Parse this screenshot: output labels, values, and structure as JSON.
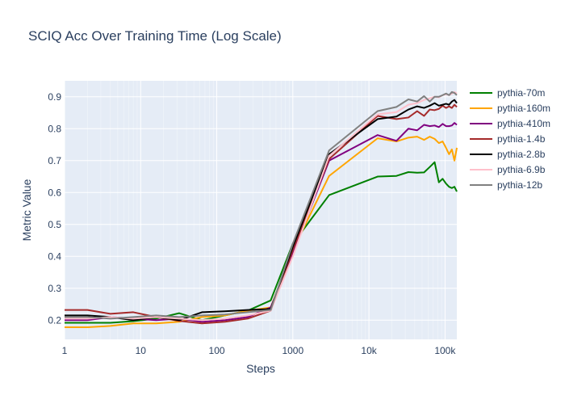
{
  "chart_data": {
    "type": "line",
    "title": "SCIQ Acc Over Training Time (Log Scale)",
    "xlabel": "Steps",
    "ylabel": "Metric Value",
    "x_scale": "log",
    "xlim": [
      1,
      143000
    ],
    "ylim": [
      0.14,
      0.95
    ],
    "grid": true,
    "legend_position": "right",
    "x_ticks": [
      {
        "value": 1,
        "label": "1"
      },
      {
        "value": 10,
        "label": "10"
      },
      {
        "value": 100,
        "label": "100"
      },
      {
        "value": 1000,
        "label": "1000"
      },
      {
        "value": 10000,
        "label": "10k"
      },
      {
        "value": 100000,
        "label": "100k"
      }
    ],
    "y_ticks": [
      {
        "value": 0.2,
        "label": "0.2"
      },
      {
        "value": 0.3,
        "label": "0.3"
      },
      {
        "value": 0.4,
        "label": "0.4"
      },
      {
        "value": 0.5,
        "label": "0.5"
      },
      {
        "value": 0.6,
        "label": "0.6"
      },
      {
        "value": 0.7,
        "label": "0.7"
      },
      {
        "value": 0.8,
        "label": "0.8"
      },
      {
        "value": 0.9,
        "label": "0.9"
      }
    ],
    "x": [
      1,
      2,
      4,
      8,
      16,
      32,
      64,
      128,
      256,
      512,
      1000,
      3000,
      13000,
      23000,
      33000,
      43000,
      53000,
      63000,
      73000,
      83000,
      93000,
      103000,
      113000,
      123000,
      133000,
      143000
    ],
    "series": [
      {
        "name": "pythia-70m",
        "color": "#008000",
        "values": [
          0.192,
          0.192,
          0.192,
          0.197,
          0.205,
          0.222,
          0.2,
          0.215,
          0.23,
          0.262,
          0.44,
          0.592,
          0.65,
          0.652,
          0.664,
          0.662,
          0.663,
          0.68,
          0.695,
          0.632,
          0.643,
          0.628,
          0.618,
          0.614,
          0.618,
          0.603
        ]
      },
      {
        "name": "pythia-160m",
        "color": "#FFA500",
        "values": [
          0.178,
          0.178,
          0.182,
          0.19,
          0.19,
          0.195,
          0.21,
          0.215,
          0.23,
          0.24,
          0.42,
          0.652,
          0.77,
          0.76,
          0.772,
          0.775,
          0.765,
          0.775,
          0.768,
          0.755,
          0.76,
          0.74,
          0.72,
          0.735,
          0.7,
          0.74
        ]
      },
      {
        "name": "pythia-410m",
        "color": "#800080",
        "values": [
          0.2,
          0.2,
          0.21,
          0.205,
          0.2,
          0.205,
          0.195,
          0.2,
          0.21,
          0.24,
          0.41,
          0.7,
          0.78,
          0.762,
          0.8,
          0.795,
          0.812,
          0.808,
          0.81,
          0.805,
          0.815,
          0.808,
          0.808,
          0.81,
          0.818,
          0.812
        ]
      },
      {
        "name": "pythia-1.4b",
        "color": "#A52A2A",
        "values": [
          0.232,
          0.232,
          0.22,
          0.225,
          0.21,
          0.198,
          0.19,
          0.195,
          0.205,
          0.23,
          0.42,
          0.705,
          0.84,
          0.83,
          0.835,
          0.855,
          0.84,
          0.86,
          0.858,
          0.862,
          0.872,
          0.865,
          0.87,
          0.865,
          0.875,
          0.868
        ]
      },
      {
        "name": "pythia-2.8b",
        "color": "#000000",
        "values": [
          0.215,
          0.215,
          0.21,
          0.2,
          0.21,
          0.2,
          0.225,
          0.228,
          0.232,
          0.235,
          0.43,
          0.72,
          0.83,
          0.838,
          0.86,
          0.87,
          0.865,
          0.872,
          0.88,
          0.872,
          0.875,
          0.878,
          0.875,
          0.885,
          0.89,
          0.88
        ]
      },
      {
        "name": "pythia-6.9b",
        "color": "#FFC0CB",
        "values": [
          0.205,
          0.205,
          0.21,
          0.205,
          0.21,
          0.205,
          0.2,
          0.205,
          0.215,
          0.23,
          0.4,
          0.715,
          0.845,
          0.852,
          0.875,
          0.88,
          0.89,
          0.895,
          0.9,
          0.898,
          0.905,
          0.908,
          0.905,
          0.91,
          0.915,
          0.91
        ]
      },
      {
        "name": "pythia-12b",
        "color": "#808080",
        "values": [
          0.21,
          0.21,
          0.205,
          0.21,
          0.215,
          0.21,
          0.215,
          0.218,
          0.225,
          0.232,
          0.44,
          0.732,
          0.855,
          0.868,
          0.892,
          0.885,
          0.902,
          0.885,
          0.9,
          0.9,
          0.905,
          0.91,
          0.905,
          0.915,
          0.912,
          0.905
        ]
      }
    ]
  }
}
